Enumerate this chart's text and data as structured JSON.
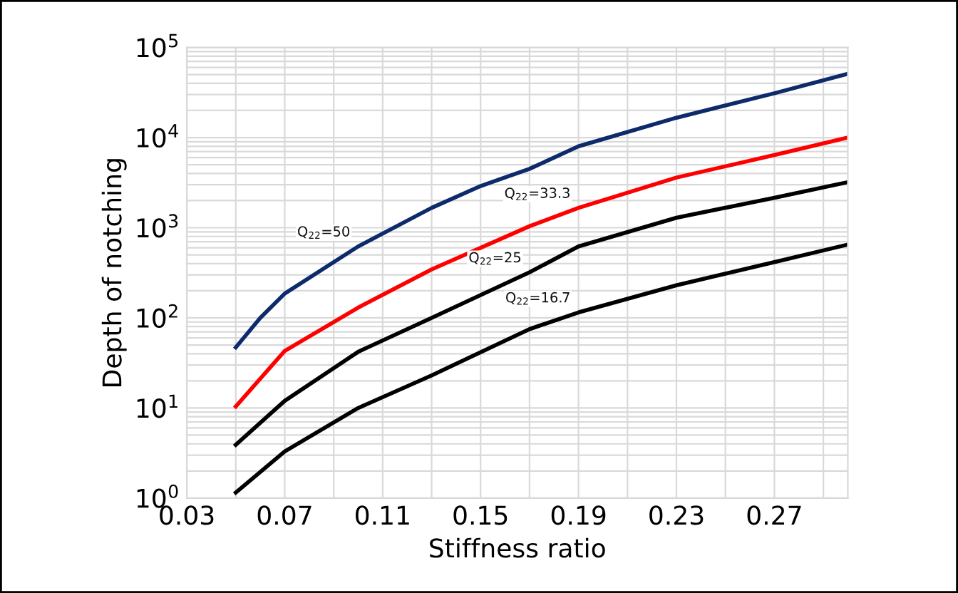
{
  "chart_data": {
    "type": "line",
    "xlabel": "Stiffness ratio",
    "ylabel": "Depth of notching",
    "log": "y",
    "grid": true,
    "legend": false,
    "marker": "none",
    "line_style": "solid",
    "xlim": [
      0.03,
      0.3
    ],
    "ylim": [
      1,
      100000
    ],
    "xticks": [
      0.03,
      {
        "value": 0.05,
        "label": null
      },
      0.07,
      {
        "value": 0.09,
        "label": null
      },
      0.11,
      {
        "value": 0.13,
        "label": null
      },
      0.15,
      {
        "value": 0.17,
        "label": null
      },
      0.19,
      {
        "value": 0.21,
        "label": null
      },
      0.23,
      {
        "value": 0.25,
        "label": null
      },
      0.27,
      {
        "value": 0.29,
        "label": null
      }
    ],
    "yticks": [
      {
        "value": 1,
        "label": "10$^{0}$"
      },
      {
        "value": 10,
        "label": "10$^{1}$"
      },
      {
        "value": 100,
        "label": "10$^{2}$"
      },
      {
        "value": 1000,
        "label": "10$^{3}$"
      },
      {
        "value": 10000,
        "label": "10$^{4}$"
      },
      {
        "value": 100000,
        "label": "10$^{5}$"
      }
    ],
    "x": [
      0.05,
      0.06,
      0.07,
      0.1,
      0.13,
      0.15,
      0.17,
      0.19,
      0.23,
      0.27,
      0.3
    ],
    "series": [
      {
        "color": "#0d2a6b",
        "values": [
          47,
          100,
          186,
          620,
          1660,
          2900,
          4500,
          8000,
          16600,
          31000,
          51000
        ]
      },
      {
        "color": "#ff0000",
        "values": [
          10.4,
          null,
          43,
          130,
          345,
          null,
          1040,
          1660,
          3600,
          6400,
          10000
        ]
      },
      {
        "color": "#000000",
        "values": [
          3.9,
          null,
          12,
          42,
          100,
          null,
          320,
          620,
          1290,
          2150,
          3200
        ]
      },
      {
        "color": "#000000",
        "values": [
          1.15,
          null,
          3.3,
          10,
          23,
          null,
          75,
          115,
          230,
          415,
          650
        ]
      }
    ],
    "annotations": [
      {
        "text": "Q$_{22}$=50",
        "x": 0.1,
        "y": 620
      },
      {
        "text": "Q$_{22}$=33.3",
        "x": 0.19,
        "y": 1660
      },
      {
        "text": "Q$_{22}$=25",
        "x": 0.17,
        "y": 320
      },
      {
        "text": "Q$_{22}$=16.7",
        "x": 0.19,
        "y": 115
      }
    ]
  }
}
